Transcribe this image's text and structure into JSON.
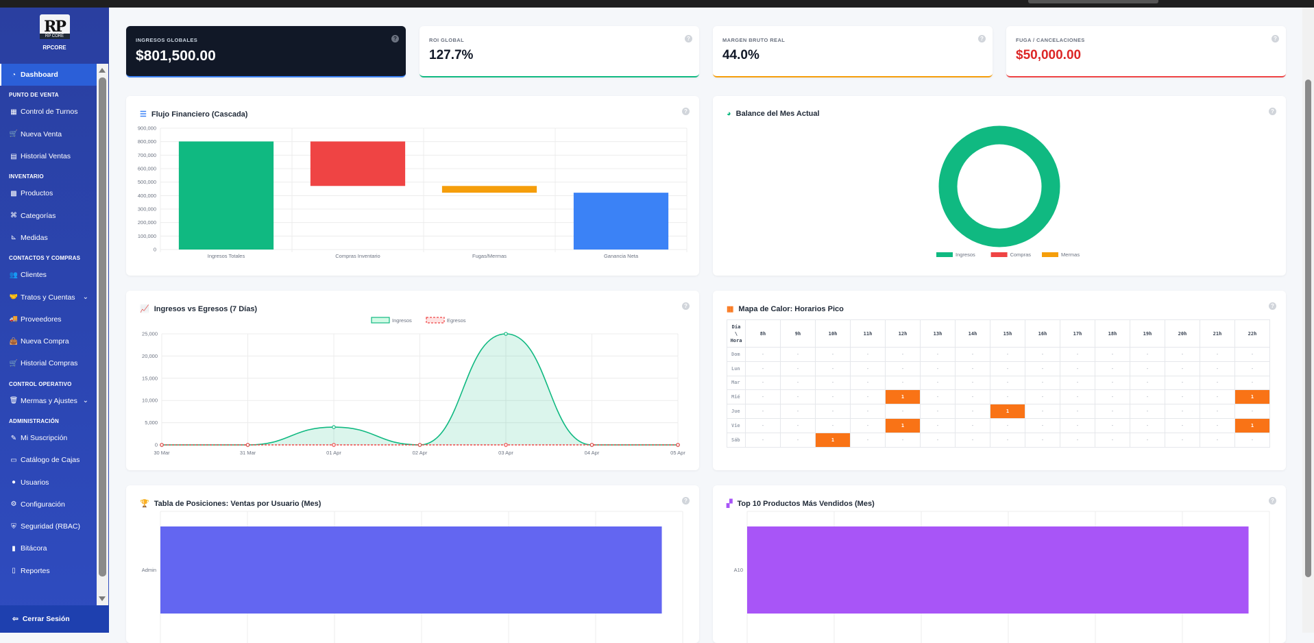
{
  "brand": {
    "logo_text": "RP",
    "logo_sub": "RP CORE",
    "name": "RPCORE"
  },
  "sidebar": {
    "items": [
      {
        "type": "item",
        "label": "Dashboard",
        "icon": "dashboard-icon",
        "glyph": "◔",
        "active": true
      },
      {
        "type": "section",
        "label": "PUNTO DE VENTA"
      },
      {
        "type": "item",
        "label": "Control de Turnos",
        "icon": "building-icon",
        "glyph": "▦"
      },
      {
        "type": "item",
        "label": "Nueva Venta",
        "icon": "cart-icon",
        "glyph": "🛒"
      },
      {
        "type": "item",
        "label": "Historial Ventas",
        "icon": "receipt-icon",
        "glyph": "▤"
      },
      {
        "type": "section",
        "label": "INVENTARIO"
      },
      {
        "type": "item",
        "label": "Productos",
        "icon": "box-icon",
        "glyph": "▩"
      },
      {
        "type": "item",
        "label": "Categorías",
        "icon": "sitemap-icon",
        "glyph": "⌘"
      },
      {
        "type": "item",
        "label": "Medidas",
        "icon": "ruler-icon",
        "glyph": "⊾"
      },
      {
        "type": "section",
        "label": "CONTACTOS Y COMPRAS"
      },
      {
        "type": "item",
        "label": "Clientes",
        "icon": "users-icon",
        "glyph": "👥"
      },
      {
        "type": "item",
        "label": "Tratos y Cuentas",
        "icon": "handshake-icon",
        "glyph": "🤝",
        "chevron": true
      },
      {
        "type": "item",
        "label": "Proveedores",
        "icon": "truck-icon",
        "glyph": "🚚"
      },
      {
        "type": "item",
        "label": "Nueva Compra",
        "icon": "bag-icon",
        "glyph": "👜"
      },
      {
        "type": "item",
        "label": "Historial Compras",
        "icon": "cart-icon",
        "glyph": "🛒"
      },
      {
        "type": "section",
        "label": "CONTROL OPERATIVO"
      },
      {
        "type": "item",
        "label": "Mermas y Ajustes",
        "icon": "trash-icon",
        "glyph": "🗑",
        "chevron": true
      },
      {
        "type": "section",
        "label": "ADMINISTRACIÓN"
      },
      {
        "type": "item",
        "label": "Mi Suscripción",
        "icon": "subscription-icon",
        "glyph": "✎"
      },
      {
        "type": "item",
        "label": "Catálogo de Cajas",
        "icon": "monitor-icon",
        "glyph": "▭"
      },
      {
        "type": "item",
        "label": "Usuarios",
        "icon": "user-icon",
        "glyph": "●"
      },
      {
        "type": "item",
        "label": "Configuración",
        "icon": "gear-icon",
        "glyph": "⚙"
      },
      {
        "type": "item",
        "label": "Seguridad (RBAC)",
        "icon": "shield-icon",
        "glyph": "⛨"
      },
      {
        "type": "item",
        "label": "Bitácora",
        "icon": "book-icon",
        "glyph": "▮"
      },
      {
        "type": "item",
        "label": "Reportes",
        "icon": "report-icon",
        "glyph": "▯"
      }
    ],
    "logout_label": "Cerrar Sesión"
  },
  "kpis": [
    {
      "label": "INGRESOS GLOBALES",
      "value": "$801,500.00"
    },
    {
      "label": "ROI GLOBAL",
      "value": "127.7%"
    },
    {
      "label": "MARGEN BRUTO REAL",
      "value": "44.0%"
    },
    {
      "label": "FUGA / CANCELACIONES",
      "value": "$50,000.00"
    }
  ],
  "help_glyph": "?",
  "cards": {
    "waterfall_title": "Flujo Financiero (Cascada)",
    "balance_title": "Balance del Mes Actual",
    "line_title": "Ingresos vs Egresos (7 Días)",
    "heatmap_title": "Mapa de Calor: Horarios Pico",
    "ranking_title": "Tabla de Posiciones: Ventas por Usuario (Mes)",
    "top_title": "Top 10 Productos Más Vendidos (Mes)"
  },
  "chart_data": [
    {
      "type": "bar",
      "subtype": "waterfall",
      "categories": [
        "Ingresos Totales",
        "Compras Inventario",
        "Fugas/Mermas",
        "Ganancia Neta"
      ],
      "ranges": [
        [
          0,
          801500
        ],
        [
          471500,
          801500
        ],
        [
          421500,
          471500
        ],
        [
          0,
          421500
        ]
      ],
      "colors": [
        "#10b981",
        "#ef4444",
        "#f59e0b",
        "#3b82f6"
      ],
      "ylim": [
        0,
        900000
      ],
      "yticks": [
        "900,000",
        "800,000",
        "700,000",
        "600,000",
        "500,000",
        "400,000",
        "300,000",
        "200,000",
        "100,000",
        "0"
      ],
      "grid": true
    },
    {
      "type": "pie",
      "subtype": "doughnut",
      "labels": [
        "Ingresos",
        "Compras",
        "Mermas"
      ],
      "values": [
        100,
        0,
        0
      ],
      "colors": [
        "#10b981",
        "#ef4444",
        "#f59e0b"
      ],
      "legend": "bottom"
    },
    {
      "type": "line",
      "x": [
        "30 Mar",
        "31 Mar",
        "01 Apr",
        "02 Apr",
        "03 Apr",
        "04 Apr",
        "05 Apr"
      ],
      "series": [
        {
          "name": "Ingresos",
          "values": [
            0,
            0,
            4000,
            0,
            25000,
            0,
            0
          ],
          "color": "#10b981"
        },
        {
          "name": "Egresos",
          "values": [
            0,
            0,
            0,
            0,
            0,
            0,
            0
          ],
          "color": "#ef4444"
        }
      ],
      "ylim": [
        0,
        25000
      ],
      "yticks": [
        "25,000",
        "20,000",
        "15,000",
        "10,000",
        "5,000",
        "0"
      ],
      "legend": "top"
    },
    {
      "type": "heatmap",
      "corner": [
        "Día",
        "\\",
        "Hora"
      ],
      "columns": [
        "8h",
        "9h",
        "10h",
        "11h",
        "12h",
        "13h",
        "14h",
        "15h",
        "16h",
        "17h",
        "18h",
        "19h",
        "20h",
        "21h",
        "22h"
      ],
      "rows": [
        "Dom",
        "Lun",
        "Mar",
        "Mié",
        "Jue",
        "Vie",
        "Sáb"
      ],
      "empty_symbol": "-",
      "cells": [
        {
          "row": "Mié",
          "col": "12h",
          "value": 1
        },
        {
          "row": "Mié",
          "col": "22h",
          "value": 1
        },
        {
          "row": "Jue",
          "col": "15h",
          "value": 1
        },
        {
          "row": "Vie",
          "col": "12h",
          "value": 1
        },
        {
          "row": "Vie",
          "col": "22h",
          "value": 1
        },
        {
          "row": "Sáb",
          "col": "10h",
          "value": 1
        }
      ],
      "color": "#f97316"
    },
    {
      "type": "bar",
      "orientation": "horizontal",
      "categories": [
        "Admin"
      ],
      "values": [
        1
      ],
      "color": "#6366f1"
    },
    {
      "type": "bar",
      "orientation": "horizontal",
      "categories": [
        "A10"
      ],
      "values": [
        1
      ],
      "color": "#a855f7"
    }
  ]
}
